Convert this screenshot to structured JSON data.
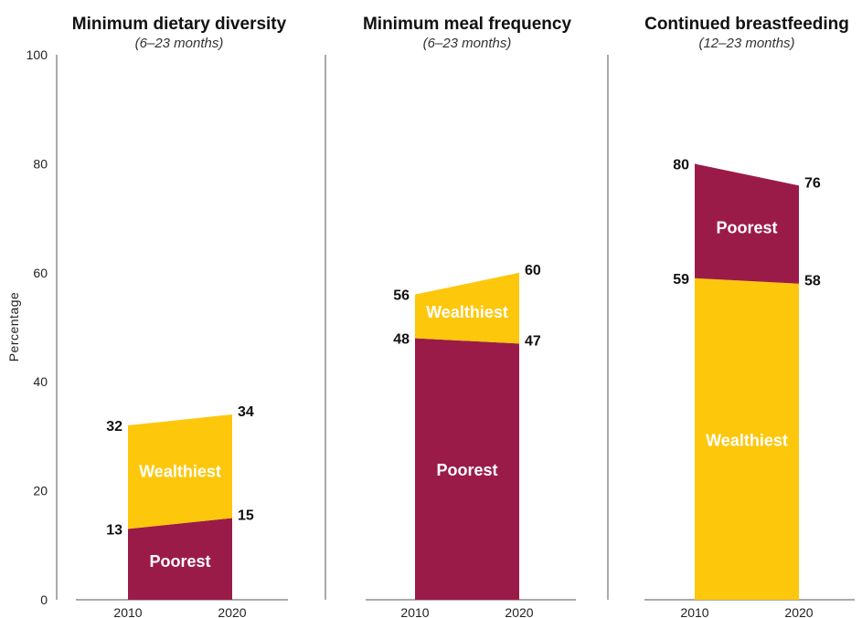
{
  "chart_data": {
    "type": "area",
    "ylabel": "Percentage",
    "ylim": [
      0,
      100
    ],
    "yticks": [
      0,
      20,
      40,
      60,
      80,
      100
    ],
    "colors": {
      "poorest": "#9B1B48",
      "wealthiest": "#FDC70C"
    },
    "panels": [
      {
        "title": "Minimum dietary diversity",
        "subtitle": "(6–23 months)",
        "x": [
          "2010",
          "2020"
        ],
        "series": [
          {
            "name": "Poorest",
            "values": [
              13,
              15
            ]
          },
          {
            "name": "Wealthiest",
            "values": [
              32,
              34
            ]
          }
        ],
        "band_order": [
          "Poorest",
          "Wealthiest"
        ]
      },
      {
        "title": "Minimum meal frequency",
        "subtitle": "(6–23 months)",
        "x": [
          "2010",
          "2020"
        ],
        "series": [
          {
            "name": "Poorest",
            "values": [
              48,
              47
            ]
          },
          {
            "name": "Wealthiest",
            "values": [
              56,
              60
            ]
          }
        ],
        "band_order": [
          "Poorest",
          "Wealthiest"
        ]
      },
      {
        "title": "Continued breastfeeding",
        "subtitle": "(12–23 months)",
        "x": [
          "2010",
          "2020"
        ],
        "series": [
          {
            "name": "Wealthiest",
            "values": [
              59,
              58
            ]
          },
          {
            "name": "Poorest",
            "values": [
              80,
              76
            ]
          }
        ],
        "band_order": [
          "Wealthiest",
          "Poorest"
        ]
      }
    ]
  }
}
